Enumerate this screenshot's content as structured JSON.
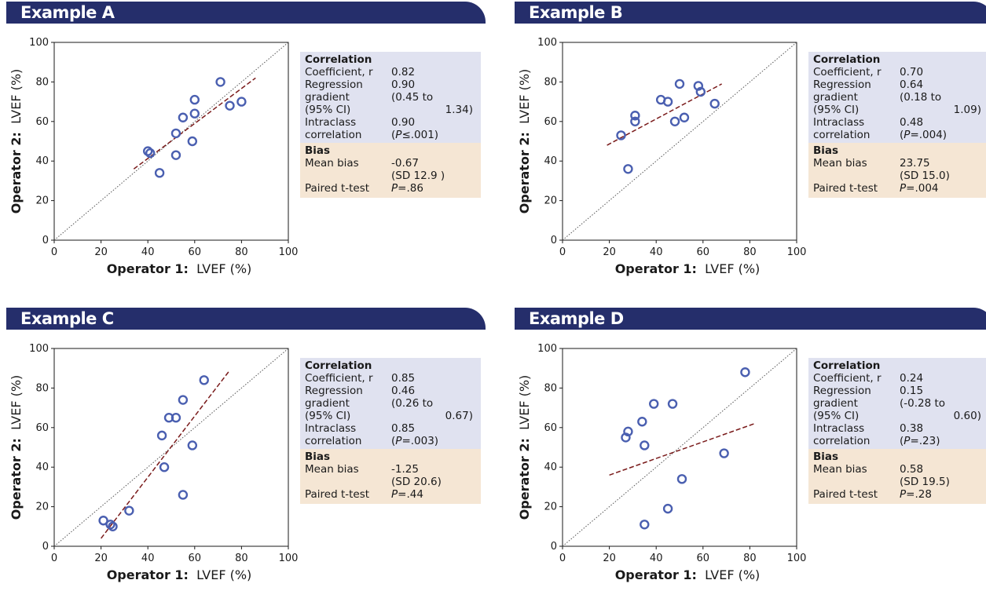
{
  "colors": {
    "header_bg": "#252e6b",
    "header_text": "#ffffff",
    "point": "#4a5fb0",
    "regression_line": "#7a1b1b",
    "identity_line": "#555555",
    "correlation_bg": "#e0e2f0",
    "bias_bg": "#f5e6d4"
  },
  "axis": {
    "x_bold": "Operator 1:",
    "x_rest": "LVEF (%)",
    "y_bold": "Operator 2:",
    "y_rest": "LVEF (%)"
  },
  "stats_labels": {
    "correlation": "Correlation",
    "coefficient": "Coefficient, r",
    "regression_1": "Regression",
    "regression_2": "gradient",
    "regression_3": "(95% CI)",
    "intraclass_1": "Intraclass",
    "intraclass_2": "correlation",
    "bias": "Bias",
    "mean_bias": "Mean bias",
    "paired": "Paired t-test"
  },
  "panels": [
    {
      "title": "Example A",
      "stats": {
        "r": "0.82",
        "grad": "0.90",
        "ci1": "(0.45 to",
        "ci2": "1.34)",
        "icc": "0.90",
        "icc_p_pre": "(",
        "icc_p_it": "P",
        "icc_p_post": "≤.001)",
        "mean_bias": "-0.67",
        "sd": "(SD 12.9 )",
        "t_it": "P",
        "t_post": "=.86"
      }
    },
    {
      "title": "Example B",
      "stats": {
        "r": "0.70",
        "grad": "0.64",
        "ci1": "(0.18 to",
        "ci2": "1.09)",
        "icc": "0.48",
        "icc_p_pre": "(",
        "icc_p_it": "P",
        "icc_p_post": "=.004)",
        "mean_bias": "23.75",
        "sd": "(SD 15.0)",
        "t_it": "P",
        "t_post": "=.004"
      }
    },
    {
      "title": "Example C",
      "stats": {
        "r": "0.85",
        "grad": "0.46",
        "ci1": "(0.26 to",
        "ci2": "0.67)",
        "icc": "0.85",
        "icc_p_pre": "(",
        "icc_p_it": "P",
        "icc_p_post": "=.003)",
        "mean_bias": "-1.25",
        "sd": "(SD 20.6)",
        "t_it": "P",
        "t_post": "=.44"
      }
    },
    {
      "title": "Example D",
      "stats": {
        "r": "0.24",
        "grad": "0.15",
        "ci1": "(-0.28 to",
        "ci2": "0.60)",
        "icc": "0.38",
        "icc_p_pre": "(",
        "icc_p_it": "P",
        "icc_p_post": "=.23)",
        "mean_bias": "0.58",
        "sd": "(SD 19.5)",
        "t_it": "P",
        "t_post": "=.28"
      }
    }
  ],
  "chart_data": [
    {
      "type": "scatter",
      "title": "Example A",
      "xlabel": "Operator 1: LVEF (%)",
      "ylabel": "Operator 2: LVEF (%)",
      "xlim": [
        0,
        100
      ],
      "ylim": [
        0,
        100
      ],
      "xticks": [
        0,
        20,
        40,
        60,
        80,
        100
      ],
      "yticks": [
        0,
        20,
        40,
        60,
        80,
        100
      ],
      "points": [
        [
          40,
          45
        ],
        [
          41,
          44
        ],
        [
          45,
          34
        ],
        [
          52,
          54
        ],
        [
          52,
          43
        ],
        [
          55,
          62
        ],
        [
          59,
          50
        ],
        [
          60,
          64
        ],
        [
          60,
          71
        ],
        [
          71,
          80
        ],
        [
          75,
          68
        ],
        [
          80,
          70
        ]
      ],
      "identity_line": true,
      "regression_line": [
        [
          34,
          36
        ],
        [
          86,
          82
        ]
      ]
    },
    {
      "type": "scatter",
      "title": "Example B",
      "xlabel": "Operator 1: LVEF (%)",
      "ylabel": "Operator 2: LVEF (%)",
      "xlim": [
        0,
        100
      ],
      "ylim": [
        0,
        100
      ],
      "xticks": [
        0,
        20,
        40,
        60,
        80,
        100
      ],
      "yticks": [
        0,
        20,
        40,
        60,
        80,
        100
      ],
      "points": [
        [
          25,
          53
        ],
        [
          28,
          36
        ],
        [
          31,
          63
        ],
        [
          31,
          60
        ],
        [
          42,
          71
        ],
        [
          45,
          70
        ],
        [
          48,
          60
        ],
        [
          50,
          79
        ],
        [
          52,
          62
        ],
        [
          58,
          78
        ],
        [
          59,
          75
        ],
        [
          65,
          69
        ]
      ],
      "identity_line": true,
      "regression_line": [
        [
          19,
          48
        ],
        [
          68,
          79
        ]
      ]
    },
    {
      "type": "scatter",
      "title": "Example C",
      "xlabel": "Operator 1: LVEF (%)",
      "ylabel": "Operator 2: LVEF (%)",
      "xlim": [
        0,
        100
      ],
      "ylim": [
        0,
        100
      ],
      "xticks": [
        0,
        20,
        40,
        60,
        80,
        100
      ],
      "yticks": [
        0,
        20,
        40,
        60,
        80,
        100
      ],
      "points": [
        [
          21,
          13
        ],
        [
          24,
          11
        ],
        [
          25,
          10
        ],
        [
          32,
          18
        ],
        [
          46,
          56
        ],
        [
          47,
          40
        ],
        [
          49,
          65
        ],
        [
          52,
          65
        ],
        [
          55,
          74
        ],
        [
          55,
          26
        ],
        [
          59,
          51
        ],
        [
          64,
          84
        ]
      ],
      "identity_line": true,
      "regression_line": [
        [
          20,
          4
        ],
        [
          75,
          89
        ]
      ]
    },
    {
      "type": "scatter",
      "title": "Example D",
      "xlabel": "Operator 1: LVEF (%)",
      "ylabel": "Operator 2: LVEF (%)",
      "xlim": [
        0,
        100
      ],
      "ylim": [
        0,
        100
      ],
      "xticks": [
        0,
        20,
        40,
        60,
        80,
        100
      ],
      "yticks": [
        0,
        20,
        40,
        60,
        80,
        100
      ],
      "points": [
        [
          27,
          55
        ],
        [
          28,
          58
        ],
        [
          34,
          63
        ],
        [
          35,
          51
        ],
        [
          35,
          11
        ],
        [
          39,
          72
        ],
        [
          45,
          19
        ],
        [
          47,
          72
        ],
        [
          51,
          34
        ],
        [
          69,
          47
        ],
        [
          78,
          88
        ]
      ],
      "identity_line": true,
      "regression_line": [
        [
          20,
          36
        ],
        [
          82,
          62
        ]
      ]
    }
  ]
}
